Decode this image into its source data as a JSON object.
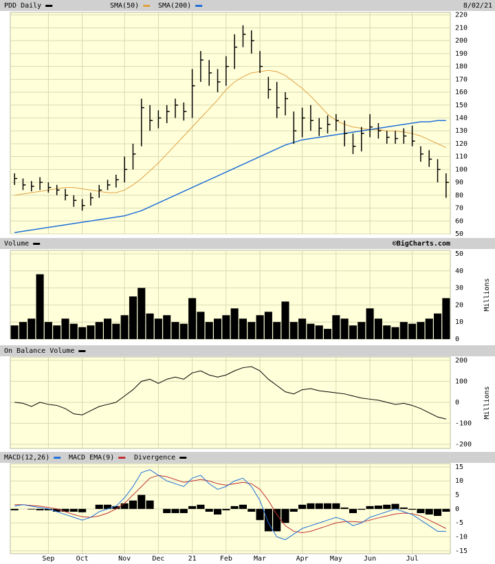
{
  "chart_data": [
    {
      "type": "price",
      "date": "8/02/21",
      "ylim": [
        50,
        222
      ],
      "yticks": [
        50,
        60,
        70,
        80,
        90,
        100,
        110,
        120,
        130,
        140,
        150,
        160,
        170,
        180,
        190,
        200,
        210,
        220
      ],
      "grid": true,
      "series": [
        {
          "name": "PDD Daily",
          "color": "#000000",
          "values": [
            93,
            88,
            87,
            90,
            86,
            84,
            80,
            76,
            72,
            78,
            84,
            88,
            92,
            100,
            112,
            148,
            138,
            140,
            145,
            150,
            145,
            165,
            185,
            175,
            168,
            180,
            195,
            205,
            200,
            180,
            162,
            148,
            155,
            130,
            140,
            138,
            132,
            135,
            138,
            128,
            118,
            128,
            133,
            130,
            125,
            124,
            126,
            122,
            112,
            108,
            100,
            90
          ],
          "high": [
            97,
            93,
            91,
            94,
            90,
            88,
            85,
            80,
            77,
            82,
            88,
            92,
            96,
            110,
            120,
            155,
            150,
            146,
            150,
            155,
            152,
            178,
            192,
            185,
            178,
            188,
            205,
            212,
            208,
            192,
            172,
            168,
            160,
            145,
            148,
            150,
            140,
            142,
            143,
            138,
            128,
            133,
            143,
            136,
            130,
            130,
            132,
            134,
            118,
            115,
            108,
            97
          ],
          "low": [
            88,
            84,
            83,
            84,
            82,
            80,
            76,
            71,
            68,
            72,
            78,
            84,
            86,
            90,
            100,
            118,
            130,
            132,
            136,
            140,
            138,
            140,
            168,
            165,
            160,
            165,
            178,
            195,
            190,
            175,
            155,
            140,
            142,
            120,
            125,
            130,
            126,
            128,
            130,
            118,
            112,
            114,
            125,
            124,
            120,
            120,
            120,
            118,
            106,
            102,
            90,
            78
          ]
        },
        {
          "name": "SMA(50)",
          "color": "#e0a040",
          "values": [
            80,
            81,
            82,
            83,
            84,
            85,
            86,
            86,
            85,
            84,
            83,
            82,
            82,
            84,
            88,
            93,
            99,
            105,
            112,
            119,
            126,
            133,
            140,
            147,
            154,
            162,
            168,
            172,
            175,
            176,
            177,
            176,
            173,
            168,
            163,
            157,
            150,
            143,
            138,
            135,
            133,
            132,
            131,
            131,
            130,
            130,
            129,
            128,
            126,
            123,
            120,
            117
          ]
        },
        {
          "name": "SMA(200)",
          "color": "#1e6fd8",
          "values": [
            51,
            52,
            53,
            54,
            55,
            56,
            57,
            58,
            59,
            60,
            61,
            62,
            63,
            64,
            66,
            68,
            71,
            74,
            77,
            80,
            83,
            86,
            89,
            92,
            95,
            98,
            101,
            104,
            107,
            110,
            113,
            116,
            119,
            121,
            123,
            124,
            125,
            126,
            127,
            128,
            129,
            130,
            131,
            132,
            133,
            134,
            135,
            136,
            137,
            137,
            138,
            138
          ]
        }
      ]
    },
    {
      "type": "volume",
      "ylabel": "Millions",
      "watermark": "©BigCharts.com",
      "ylim": [
        0,
        52
      ],
      "yticks": [
        0,
        10,
        20,
        30,
        40,
        50
      ],
      "grid": true,
      "series": [
        {
          "name": "Volume",
          "color": "#000000",
          "values": [
            8,
            10,
            12,
            38,
            10,
            8,
            12,
            9,
            7,
            8,
            10,
            12,
            9,
            14,
            25,
            30,
            15,
            12,
            14,
            10,
            9,
            24,
            16,
            10,
            12,
            14,
            18,
            12,
            10,
            14,
            16,
            10,
            22,
            10,
            12,
            9,
            8,
            6,
            14,
            12,
            8,
            10,
            18,
            12,
            8,
            7,
            10,
            9,
            10,
            12,
            15,
            24
          ]
        }
      ]
    },
    {
      "type": "obv",
      "ylabel": "Millions",
      "ylim": [
        -220,
        216
      ],
      "yticks": [
        -200,
        -100,
        0,
        100,
        200
      ],
      "grid": true,
      "series": [
        {
          "name": "On Balance Volume",
          "color": "#000000",
          "values": [
            0,
            -5,
            -20,
            0,
            -10,
            -15,
            -30,
            -55,
            -60,
            -40,
            -20,
            -10,
            0,
            30,
            60,
            100,
            110,
            90,
            110,
            120,
            110,
            140,
            150,
            130,
            120,
            130,
            150,
            165,
            170,
            150,
            110,
            80,
            50,
            40,
            60,
            65,
            55,
            50,
            45,
            40,
            30,
            20,
            15,
            10,
            0,
            -10,
            -5,
            -15,
            -30,
            -50,
            -70,
            -80
          ]
        }
      ]
    },
    {
      "type": "macd",
      "categories": [
        null,
        null,
        null,
        null,
        "Sep",
        null,
        null,
        null,
        "Oct",
        null,
        null,
        null,
        null,
        "Nov",
        null,
        null,
        null,
        "Dec",
        null,
        null,
        null,
        "21",
        null,
        null,
        null,
        "Feb",
        null,
        null,
        null,
        "Mar",
        null,
        null,
        null,
        null,
        "Apr",
        null,
        null,
        null,
        "May",
        null,
        null,
        null,
        "Jun",
        null,
        null,
        null,
        null,
        "Jul",
        null,
        null,
        null,
        null
      ],
      "ylim": [
        -16,
        16.2
      ],
      "yticks": [
        -15,
        -10,
        -5,
        0,
        5,
        10,
        15
      ],
      "grid": true,
      "series": [
        {
          "name": "MACD(12,26)",
          "color": "#1e6fd8",
          "values": [
            1,
            1.5,
            1,
            0.5,
            0,
            -1,
            -2,
            -3,
            -4,
            -3,
            -1,
            0,
            1,
            4,
            8,
            13,
            14,
            12,
            10,
            9,
            8,
            11,
            12,
            9,
            7,
            8,
            10,
            11,
            8,
            3,
            -5,
            -10,
            -11,
            -9,
            -7,
            -6,
            -5,
            -4,
            -3,
            -4,
            -6,
            -5,
            -3,
            -2,
            -1,
            0,
            -1,
            -2,
            -4,
            -6,
            -8,
            -8
          ]
        },
        {
          "name": "MACD EMA(9)",
          "color": "#c03030",
          "values": [
            1.5,
            1.5,
            1.2,
            1,
            0.5,
            0,
            -1,
            -2,
            -2.8,
            -3,
            -2.5,
            -1.5,
            0,
            2,
            5,
            8,
            11,
            12,
            11.5,
            10.5,
            9.5,
            10,
            10.5,
            10,
            9,
            8.5,
            9,
            9.5,
            9,
            7,
            3,
            -2,
            -6,
            -8,
            -8.5,
            -8,
            -7,
            -6,
            -5,
            -4.5,
            -4.5,
            -4.7,
            -4,
            -3.2,
            -2.5,
            -1.8,
            -1.5,
            -1.7,
            -2.5,
            -4,
            -5.5,
            -7
          ]
        },
        {
          "name": "Divergence",
          "color": "#000000",
          "values": [
            -0.5,
            0,
            -0.2,
            -0.5,
            -0.5,
            -1,
            -1,
            -1,
            -1.2,
            0,
            1.5,
            1.5,
            1,
            2,
            3,
            5,
            3,
            0,
            -1.5,
            -1.5,
            -1.5,
            1,
            1.5,
            -1,
            -2,
            -0.5,
            1,
            1.5,
            -1,
            -4,
            -8,
            -8,
            -5,
            -1,
            1.5,
            2,
            2,
            2,
            2,
            0.5,
            -1.5,
            -0.3,
            1,
            1.2,
            1.5,
            1.8,
            0.5,
            -0.3,
            -1.5,
            -2,
            -2.5,
            -1
          ]
        }
      ]
    }
  ]
}
